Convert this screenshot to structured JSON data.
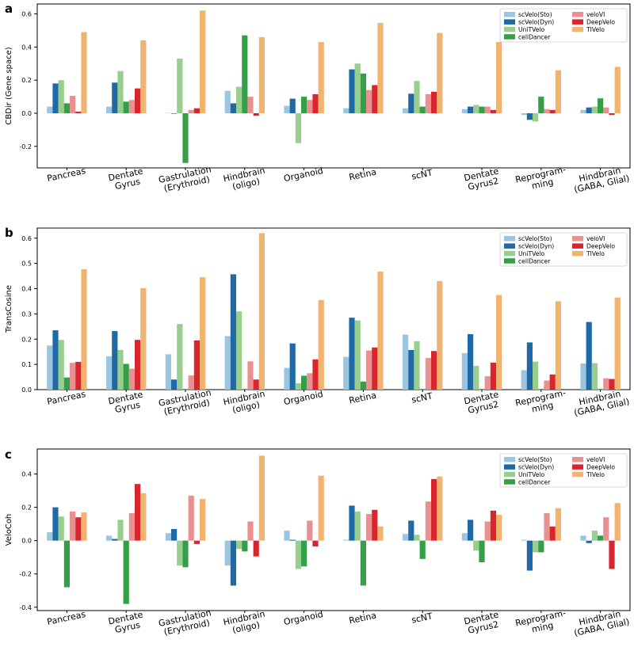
{
  "colors": {
    "scVelo(Sto)": "#9ac6e0",
    "scVelo(Dyn)": "#1f6aa6",
    "UniTVelo": "#98cf8e",
    "cellDancer": "#33a047",
    "veloVI": "#e99090",
    "DeepVelo": "#d9262e",
    "TIVelo": "#f1b470"
  },
  "chart_data": [
    {
      "panel": "a",
      "type": "bar",
      "ylabel": "CBDir (Gene space)",
      "ylim": [
        -0.33,
        0.66
      ],
      "yticks": [
        "0.6",
        "0.4",
        "0.2",
        "0.0",
        "-0.2"
      ],
      "ytick_values": [
        0.6,
        0.4,
        0.2,
        0.0,
        -0.2
      ],
      "legend_position": "top-right",
      "categories": [
        "Pancreas",
        "Dentate\nGyrus",
        "Gastrulation\n(Erythroid)",
        "Hindbrain\n(oligo)",
        "Organoid",
        "Retina",
        "scNT",
        "Dentate\nGyrus2",
        "Reprogram-\nming",
        "Hindbrain\n(GABA, Glial)"
      ],
      "series": [
        {
          "name": "scVelo(Sto)",
          "values": [
            0.04,
            0.04,
            0.002,
            0.135,
            0.045,
            0.03,
            0.03,
            0.025,
            -0.01,
            0.02
          ]
        },
        {
          "name": "scVelo(Dyn)",
          "values": [
            0.18,
            0.185,
            -0.003,
            0.06,
            0.088,
            0.265,
            0.118,
            0.04,
            -0.04,
            0.035
          ]
        },
        {
          "name": "UniTVelo",
          "values": [
            0.2,
            0.255,
            0.33,
            0.16,
            -0.18,
            0.3,
            0.195,
            0.05,
            -0.05,
            0.04
          ]
        },
        {
          "name": "cellDancer",
          "values": [
            0.06,
            0.07,
            -0.3,
            0.47,
            0.1,
            0.24,
            0.04,
            0.04,
            0.1,
            0.09
          ]
        },
        {
          "name": "veloVI",
          "values": [
            0.105,
            0.08,
            0.02,
            0.1,
            0.08,
            0.14,
            0.115,
            0.04,
            0.025,
            0.035
          ]
        },
        {
          "name": "DeepVelo",
          "values": [
            0.01,
            0.15,
            0.03,
            -0.015,
            0.115,
            0.17,
            0.13,
            0.02,
            0.02,
            -0.01
          ]
        },
        {
          "name": "TIVelo",
          "values": [
            0.49,
            0.44,
            0.62,
            0.46,
            0.43,
            0.545,
            0.485,
            0.43,
            0.26,
            0.28
          ]
        }
      ]
    },
    {
      "panel": "b",
      "type": "bar",
      "ylabel": "TransCosine",
      "ylim": [
        0.0,
        0.64
      ],
      "yticks": [
        "0.6",
        "0.5",
        "0.4",
        "0.3",
        "0.2",
        "0.1",
        "0.0"
      ],
      "ytick_values": [
        0.6,
        0.5,
        0.4,
        0.3,
        0.2,
        0.1,
        0.0
      ],
      "legend_position": "top-right",
      "categories": [
        "Pancreas",
        "Dentate\nGyrus",
        "Gastrulation\n(Erythroid)",
        "Hindbrain\n(oligo)",
        "Organoid",
        "Retina",
        "scNT",
        "Dentate\nGyrus2",
        "Reprogram-\nming",
        "Hindbrain\n(GABA, Glial)"
      ],
      "series": [
        {
          "name": "scVelo(Sto)",
          "values": [
            0.175,
            0.132,
            0.14,
            0.212,
            0.086,
            0.13,
            0.218,
            0.145,
            0.077,
            0.104
          ]
        },
        {
          "name": "scVelo(Dyn)",
          "values": [
            0.235,
            0.232,
            0.04,
            0.457,
            0.183,
            0.285,
            0.157,
            0.22,
            0.187,
            0.268
          ]
        },
        {
          "name": "UniTVelo",
          "values": [
            0.197,
            0.157,
            0.26,
            0.31,
            0.025,
            0.274,
            0.192,
            0.094,
            0.111,
            0.105
          ]
        },
        {
          "name": "cellDancer",
          "values": [
            0.048,
            0.102,
            0.0,
            0.0,
            0.055,
            0.032,
            0.0,
            0.0,
            0.0,
            0.0
          ]
        },
        {
          "name": "veloVI",
          "values": [
            0.106,
            0.083,
            0.056,
            0.112,
            0.065,
            0.155,
            0.125,
            0.053,
            0.036,
            0.045
          ]
        },
        {
          "name": "DeepVelo",
          "values": [
            0.11,
            0.197,
            0.195,
            0.04,
            0.12,
            0.167,
            0.153,
            0.107,
            0.06,
            0.042
          ]
        },
        {
          "name": "TIVelo",
          "values": [
            0.477,
            0.402,
            0.445,
            0.62,
            0.355,
            0.468,
            0.43,
            0.375,
            0.35,
            0.365
          ]
        }
      ]
    },
    {
      "panel": "c",
      "type": "bar",
      "ylabel": "VeloCoh",
      "ylim": [
        -0.42,
        0.55
      ],
      "yticks": [
        "0.4",
        "0.2",
        "0.0",
        "-0.2",
        "-0.4"
      ],
      "ytick_values": [
        0.4,
        0.2,
        0.0,
        -0.2,
        -0.4
      ],
      "legend_position": "top-right",
      "categories": [
        "Pancreas",
        "Dentate\nGyrus",
        "Gastrulation\n(Erythroid)",
        "Hindbrain\n(oligo)",
        "Organoid",
        "Retina",
        "scNT",
        "Dentate\nGyrus2",
        "Reprogram-\nming",
        "Hindbrain\n(GABA, Glial)"
      ],
      "series": [
        {
          "name": "scVelo(Sto)",
          "values": [
            0.05,
            0.03,
            0.045,
            -0.15,
            0.06,
            0.005,
            0.04,
            0.045,
            0.005,
            0.03
          ]
        },
        {
          "name": "scVelo(Dyn)",
          "values": [
            0.2,
            0.01,
            0.07,
            -0.27,
            0.005,
            0.21,
            0.12,
            0.125,
            -0.18,
            -0.015
          ]
        },
        {
          "name": "UniTVelo",
          "values": [
            0.145,
            0.125,
            -0.15,
            -0.05,
            -0.17,
            0.175,
            0.035,
            -0.06,
            -0.07,
            0.06
          ]
        },
        {
          "name": "cellDancer",
          "values": [
            -0.28,
            -0.38,
            -0.16,
            -0.065,
            -0.155,
            -0.27,
            -0.11,
            -0.13,
            -0.07,
            0.03
          ]
        },
        {
          "name": "veloVI",
          "values": [
            0.175,
            0.165,
            0.27,
            0.115,
            0.12,
            0.16,
            0.235,
            0.115,
            0.165,
            0.14
          ]
        },
        {
          "name": "DeepVelo",
          "values": [
            0.14,
            0.34,
            -0.02,
            -0.095,
            -0.035,
            0.185,
            0.37,
            0.18,
            0.085,
            -0.17
          ]
        },
        {
          "name": "TIVelo",
          "values": [
            0.17,
            0.285,
            0.25,
            0.51,
            0.39,
            0.085,
            0.385,
            0.155,
            0.195,
            0.225
          ]
        }
      ]
    }
  ]
}
